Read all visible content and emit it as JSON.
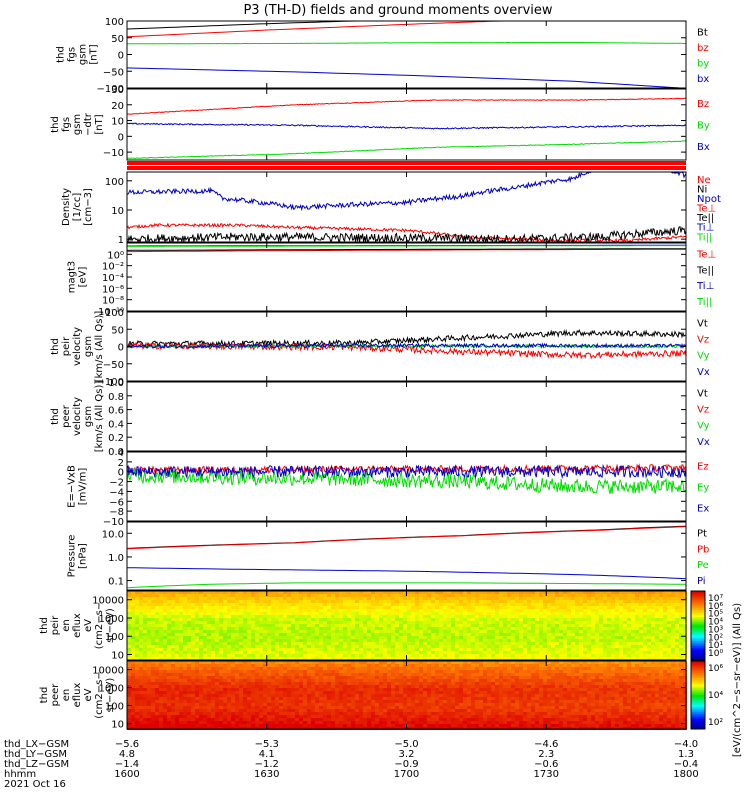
{
  "title": "P3 (TH-D) fields and ground moments overview",
  "colors": {
    "black": "#000000",
    "red": "#ff0000",
    "green": "#00dd00",
    "blue": "#0000cc",
    "frame": "#000000",
    "background": "#ffffff"
  },
  "chart_data": [
    {
      "id": "fgs-gsm",
      "type": "line",
      "ylabel_lines": [
        "thd",
        "fgs",
        "gsm",
        "[nT]"
      ],
      "ylim": [
        -100,
        100
      ],
      "yticks": [
        -100,
        -50,
        0,
        50,
        100
      ],
      "yticklabels": [
        "−100",
        "−50",
        "0",
        "50",
        "100"
      ],
      "series": [
        {
          "name": "Bt",
          "color": "#000000",
          "points": [
            [
              0,
              76
            ],
            [
              0.25,
              92
            ],
            [
              0.5,
              105
            ],
            [
              1.0,
              130
            ]
          ],
          "noise": 0
        },
        {
          "name": "bz",
          "color": "#ff0000",
          "points": [
            [
              0,
              53
            ],
            [
              0.25,
              73
            ],
            [
              0.5,
              90
            ],
            [
              1.0,
              120
            ]
          ],
          "noise": 0
        },
        {
          "name": "by",
          "color": "#00dd00",
          "points": [
            [
              0,
              32
            ],
            [
              0.3,
              33
            ],
            [
              0.5,
              35
            ],
            [
              0.8,
              36
            ],
            [
              1.0,
              33
            ]
          ],
          "noise": 0.3
        },
        {
          "name": "bx",
          "color": "#0000cc",
          "points": [
            [
              0,
              -40
            ],
            [
              0.3,
              -52
            ],
            [
              0.5,
              -62
            ],
            [
              0.8,
              -80
            ],
            [
              1.0,
              -101
            ]
          ],
          "noise": 0
        }
      ]
    },
    {
      "id": "fgs-gsm-detrended",
      "type": "line",
      "ylabel_lines": [
        "thd",
        "fgs",
        "gsm",
        "−dtr",
        "[nT]"
      ],
      "ylim": [
        -15,
        30
      ],
      "yticks": [
        -10,
        0,
        10,
        20,
        30
      ],
      "yticklabels": [
        "−10",
        "0",
        "10",
        "20",
        "30"
      ],
      "series": [
        {
          "name": "Bz",
          "color": "#ff0000",
          "points": [
            [
              0,
              14
            ],
            [
              0.3,
              20
            ],
            [
              0.55,
              23
            ],
            [
              0.8,
              23
            ],
            [
              1.0,
              24
            ]
          ],
          "noise": 0.2
        },
        {
          "name": "By",
          "color": "#00dd00",
          "points": [
            [
              0,
              -14
            ],
            [
              0.3,
              -11
            ],
            [
              0.55,
              -7
            ],
            [
              0.8,
              -5
            ],
            [
              1.0,
              -3
            ]
          ],
          "noise": 0.2
        },
        {
          "name": "Bx",
          "color": "#0000cc",
          "points": [
            [
              0,
              8
            ],
            [
              0.3,
              7
            ],
            [
              0.55,
              5
            ],
            [
              0.8,
              6
            ],
            [
              1.0,
              7
            ]
          ],
          "noise": 0.4
        }
      ]
    },
    {
      "id": "density",
      "type": "line",
      "yscale": "log",
      "ylabel_lines": [
        "Density",
        "[1/cc]",
        "[cm−3]"
      ],
      "ylim": [
        0.8,
        200
      ],
      "yticks": [
        1,
        10,
        100
      ],
      "yticklabels": [
        "1",
        "10",
        "100"
      ],
      "series": [
        {
          "name": "Ne",
          "color": "#ff0000",
          "points": [
            [
              0,
              2.5
            ],
            [
              0.05,
              3
            ],
            [
              0.2,
              3
            ],
            [
              0.3,
              2.5
            ],
            [
              0.5,
              2
            ],
            [
              0.6,
              1.2
            ],
            [
              0.75,
              0.9
            ],
            [
              0.9,
              0.9
            ],
            [
              1.0,
              1.2
            ]
          ],
          "noise": 0.05
        },
        {
          "name": "Ni",
          "color": "#000000",
          "points": [
            [
              0,
              1
            ],
            [
              0.2,
              1.2
            ],
            [
              0.5,
              1.1
            ],
            [
              0.7,
              1
            ],
            [
              0.85,
              1.2
            ],
            [
              1.0,
              2.0
            ]
          ],
          "noise": 0.15
        },
        {
          "name": "Npot",
          "color": "#0000cc",
          "points": [
            [
              0,
              40
            ],
            [
              0.15,
              45
            ],
            [
              0.17,
              25
            ],
            [
              0.3,
              12
            ],
            [
              0.5,
              18
            ],
            [
              0.6,
              30
            ],
            [
              0.7,
              60
            ],
            [
              0.8,
              120
            ],
            [
              0.85,
              300
            ],
            [
              0.95,
              300
            ],
            [
              1.0,
              150
            ]
          ],
          "noise": 0.08
        },
        {
          "name": "Te⊥",
          "color": "#ff0000",
          "points": [],
          "noise": 0
        },
        {
          "name": "Te||",
          "color": "#000000",
          "points": [],
          "noise": 0
        },
        {
          "name": "Ti⊥",
          "color": "#0000cc",
          "points": [],
          "noise": 0
        },
        {
          "name": "Ti||",
          "color": "#00dd00",
          "points": [],
          "noise": 0
        }
      ]
    },
    {
      "id": "temperature",
      "type": "line",
      "yscale": "log",
      "ylabel_lines": [
        "magt3",
        "[eV]"
      ],
      "ylim": [
        1e-10,
        100.0
      ],
      "yticks": [
        1,
        0.01,
        0.0001,
        1e-06,
        1e-08,
        1e-10
      ],
      "yticklabels": [
        "10⁰",
        "10⁻²",
        "10⁻⁴",
        "10⁻⁶",
        "10⁻⁸",
        "10⁻¹⁰"
      ],
      "series": [
        {
          "name": "Te⊥",
          "color": "#ff0000",
          "points": [
            [
              0,
              3
            ],
            [
              1.0,
              8
            ]
          ],
          "noise": 0
        },
        {
          "name": "Te||",
          "color": "#000000",
          "points": [
            [
              0,
              5
            ],
            [
              1.0,
              10
            ]
          ],
          "noise": 0
        },
        {
          "name": "Ti⊥",
          "color": "#0000cc",
          "points": [
            [
              0,
              30
            ],
            [
              1.0,
              40
            ]
          ],
          "noise": 0
        },
        {
          "name": "Ti||",
          "color": "#00dd00",
          "points": [
            [
              0,
              25
            ],
            [
              1.0,
              35
            ]
          ],
          "noise": 0
        }
      ]
    },
    {
      "id": "peir-velocity",
      "type": "line",
      "ylabel_lines": [
        "thd",
        "peir",
        "velocity",
        "gsm",
        "[km/s (All Qs)]"
      ],
      "ylim": [
        -100,
        100
      ],
      "yticks": [
        -100,
        -50,
        0,
        50,
        100
      ],
      "yticklabels": [
        "−100",
        "−50",
        "0",
        "50",
        "100"
      ],
      "series": [
        {
          "name": "Vt",
          "color": "#000000",
          "points": [
            [
              0,
              8
            ],
            [
              0.4,
              10
            ],
            [
              0.6,
              25
            ],
            [
              0.8,
              40
            ],
            [
              1.0,
              35
            ]
          ],
          "noise": 8
        },
        {
          "name": "Vz",
          "color": "#ff0000",
          "points": [
            [
              0,
              2
            ],
            [
              0.4,
              -2
            ],
            [
              0.6,
              -15
            ],
            [
              0.8,
              -25
            ],
            [
              1.0,
              -20
            ]
          ],
          "noise": 9
        },
        {
          "name": "Vy",
          "color": "#00dd00",
          "points": [
            [
              0,
              0
            ],
            [
              0.5,
              2
            ],
            [
              1.0,
              0
            ]
          ],
          "noise": 4
        },
        {
          "name": "Vx",
          "color": "#0000cc",
          "points": [
            [
              0,
              0
            ],
            [
              0.5,
              3
            ],
            [
              1.0,
              2
            ]
          ],
          "noise": 5
        }
      ]
    },
    {
      "id": "peer-velocity",
      "type": "line",
      "ylabel_lines": [
        "thd",
        "peer",
        "velocity",
        "gsm",
        "[km/s (All Qs)]"
      ],
      "ylim": [
        0,
        1
      ],
      "yticks": [
        0,
        0.2,
        0.4,
        0.6,
        0.8,
        1.0
      ],
      "yticklabels": [
        "0.0",
        "0.2",
        "0.4",
        "0.6",
        "0.8",
        "1.0"
      ],
      "series": [
        {
          "name": "Vt",
          "color": "#000000",
          "points": [],
          "noise": 0
        },
        {
          "name": "Vz",
          "color": "#ff0000",
          "points": [],
          "noise": 0
        },
        {
          "name": "Vy",
          "color": "#00dd00",
          "points": [],
          "noise": 0
        },
        {
          "name": "Vx",
          "color": "#0000cc",
          "points": [],
          "noise": 0
        }
      ]
    },
    {
      "id": "electric-field",
      "type": "line",
      "ylabel_lines": [
        "E=−VxB",
        "[mV/m]"
      ],
      "ylim": [
        -10,
        4
      ],
      "yticks": [
        -10,
        -8,
        -6,
        -4,
        -2,
        0,
        2,
        4
      ],
      "yticklabels": [
        "−10",
        "−8",
        "−6",
        "−4",
        "−2",
        "0",
        "2",
        "4"
      ],
      "series": [
        {
          "name": "Ez",
          "color": "#ff0000",
          "points": [
            [
              0,
              0.3
            ],
            [
              0.5,
              0.5
            ],
            [
              1.0,
              0.8
            ]
          ],
          "noise": 0.7
        },
        {
          "name": "Ey",
          "color": "#00dd00",
          "points": [
            [
              0,
              -0.8
            ],
            [
              0.4,
              -1.5
            ],
            [
              0.6,
              -2
            ],
            [
              0.8,
              -3
            ],
            [
              1.0,
              -3
            ]
          ],
          "noise": 1.5
        },
        {
          "name": "Ex",
          "color": "#0000cc",
          "points": [
            [
              0,
              0
            ],
            [
              0.5,
              0
            ],
            [
              1.0,
              0
            ]
          ],
          "noise": 1.2
        }
      ]
    },
    {
      "id": "pressure",
      "type": "line",
      "yscale": "log",
      "ylabel_lines": [
        "Pressure",
        "[nPa]"
      ],
      "ylim": [
        0.04,
        30
      ],
      "yticks": [
        0.1,
        1,
        10
      ],
      "yticklabels": [
        "0.1",
        "1.0",
        "10.0"
      ],
      "series": [
        {
          "name": "Pt",
          "color": "#000000",
          "points": [
            [
              0,
              2.3
            ],
            [
              0.3,
              4
            ],
            [
              0.6,
              8
            ],
            [
              0.85,
              14
            ],
            [
              1.0,
              20
            ]
          ],
          "noise": 0
        },
        {
          "name": "Pb",
          "color": "#ff0000",
          "points": [
            [
              0,
              2.2
            ],
            [
              0.3,
              3.9
            ],
            [
              0.6,
              7.8
            ],
            [
              0.85,
              13.5
            ],
            [
              1.0,
              19
            ]
          ],
          "noise": 0
        },
        {
          "name": "Pe",
          "color": "#00dd00",
          "points": [
            [
              0,
              0.05
            ],
            [
              0.15,
              0.07
            ],
            [
              0.3,
              0.08
            ],
            [
              0.6,
              0.08
            ],
            [
              1.0,
              0.07
            ]
          ],
          "noise": 0
        },
        {
          "name": "Pi",
          "color": "#0000cc",
          "points": [
            [
              0,
              0.35
            ],
            [
              0.2,
              0.3
            ],
            [
              0.5,
              0.25
            ],
            [
              0.8,
              0.18
            ],
            [
              1.0,
              0.12
            ]
          ],
          "noise": 0
        }
      ]
    },
    {
      "id": "peir-eflux",
      "type": "heatmap",
      "ylabel_lines": [
        "thd",
        "peir",
        "en",
        "eflux",
        "eV",
        "(cm2−s−",
        "sr−eV)"
      ],
      "ylim": [
        5,
        30000
      ],
      "yscale": "log",
      "yticks": [
        10,
        100,
        1000,
        10000
      ],
      "yticklabels": [
        "10",
        "100",
        "1000",
        "10000"
      ],
      "colorbar": {
        "label": "[eV/(cm^2−s−sr−eV)] (All Qs)",
        "ticklabels": [
          "10⁷",
          "10⁶",
          "10⁵",
          "10⁴",
          "10³",
          "10²",
          "10¹",
          "10⁰"
        ],
        "range_log": [
          0,
          7
        ]
      },
      "z_profile_log": [
        [
          5,
          4.6
        ],
        [
          10,
          4.4
        ],
        [
          100,
          4.2
        ],
        [
          1000,
          4.3
        ],
        [
          10000,
          4.9
        ],
        [
          30000,
          5.3
        ]
      ],
      "z_trend_log_per_unit_x": 0.1
    },
    {
      "id": "peer-eflux",
      "type": "heatmap",
      "ylabel_lines": [
        "thd",
        "peer",
        "en",
        "eflux",
        "eV",
        "(cm2−s−",
        "sr−eV)"
      ],
      "ylim": [
        5,
        30000
      ],
      "yscale": "log",
      "yticks": [
        10,
        100,
        1000,
        10000
      ],
      "yticklabels": [
        "10",
        "100",
        "1000",
        "10000"
      ],
      "colorbar": {
        "label": "",
        "ticklabels": [
          "10⁶",
          "10⁴",
          "10²"
        ],
        "range_log": [
          1,
          7
        ]
      },
      "z_profile_log": [
        [
          5,
          7.2
        ],
        [
          10,
          7.0
        ],
        [
          100,
          6.6
        ],
        [
          1000,
          6.7
        ],
        [
          10000,
          6.2
        ],
        [
          30000,
          5.9
        ]
      ],
      "z_trend_log_per_unit_x": -0.2
    }
  ],
  "time_axis": {
    "row_labels": [
      "thd_LX−GSM",
      "thd_LY−GSM",
      "thd_LZ−GSM",
      "hhmm",
      "2021 Oct 16"
    ],
    "columns": [
      {
        "lx": "−5.6",
        "ly": "4.8",
        "lz": "−1.4",
        "hhmm": "1600"
      },
      {
        "lx": "−5.3",
        "ly": "4.1",
        "lz": "−1.2",
        "hhmm": "1630"
      },
      {
        "lx": "−5.0",
        "ly": "3.2",
        "lz": "−0.9",
        "hhmm": "1700"
      },
      {
        "lx": "−4.6",
        "ly": "2.3",
        "lz": "−0.6",
        "hhmm": "1730"
      },
      {
        "lx": "−4.0",
        "ly": "1.3",
        "lz": "−0.4",
        "hhmm": "1800"
      }
    ]
  }
}
